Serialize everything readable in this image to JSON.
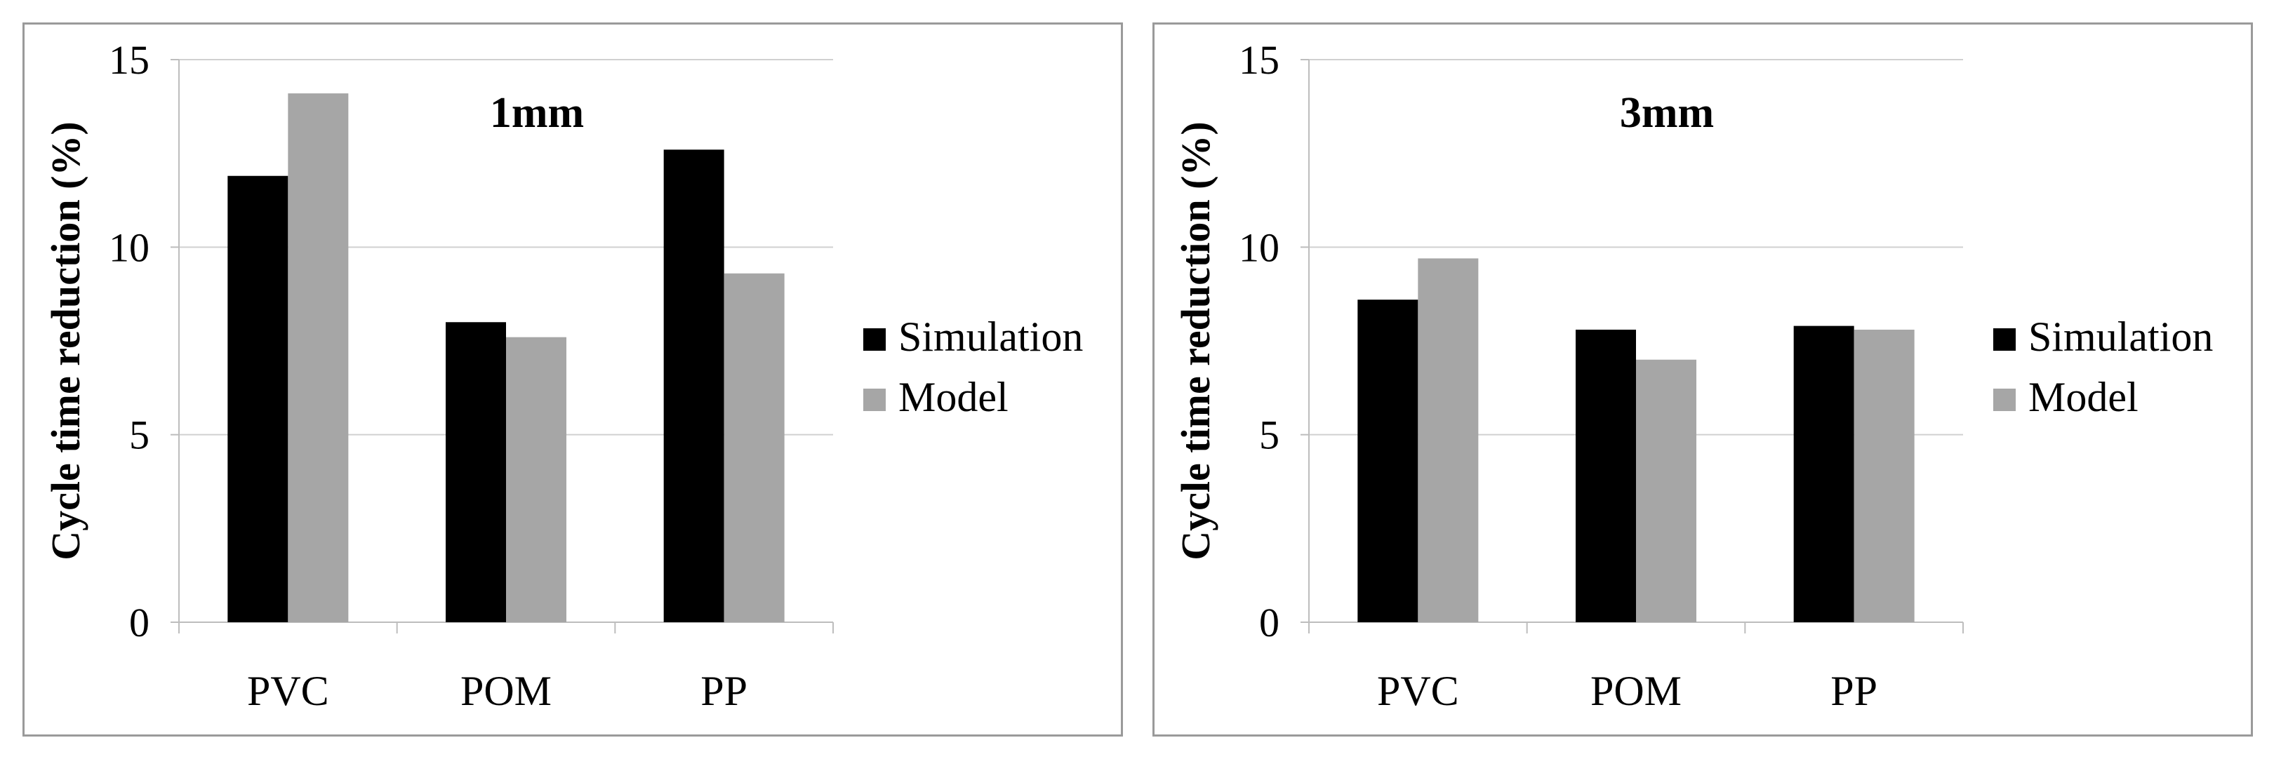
{
  "chart_data": [
    {
      "type": "bar",
      "title": "1mm",
      "xlabel": "",
      "ylabel": "Cycle time reduction (%)",
      "categories": [
        "PVC",
        "POM",
        "PP"
      ],
      "ylim": [
        0,
        15
      ],
      "yticks": [
        0,
        5,
        10,
        15
      ],
      "grid": true,
      "legend": "right",
      "series": [
        {
          "name": "Simulation",
          "color": "#000000",
          "values": [
            11.9,
            8.0,
            12.6
          ]
        },
        {
          "name": "Model",
          "color": "#a6a6a6",
          "values": [
            14.1,
            7.6,
            9.3
          ]
        }
      ]
    },
    {
      "type": "bar",
      "title": "3mm",
      "xlabel": "",
      "ylabel": "Cycle time reduction (%)",
      "categories": [
        "PVC",
        "POM",
        "PP"
      ],
      "ylim": [
        0,
        15
      ],
      "yticks": [
        0,
        5,
        10,
        15
      ],
      "grid": true,
      "legend": "right",
      "series": [
        {
          "name": "Simulation",
          "color": "#000000",
          "values": [
            8.6,
            7.8,
            7.9
          ]
        },
        {
          "name": "Model",
          "color": "#a6a6a6",
          "values": [
            9.7,
            7.0,
            7.8
          ]
        }
      ]
    }
  ]
}
